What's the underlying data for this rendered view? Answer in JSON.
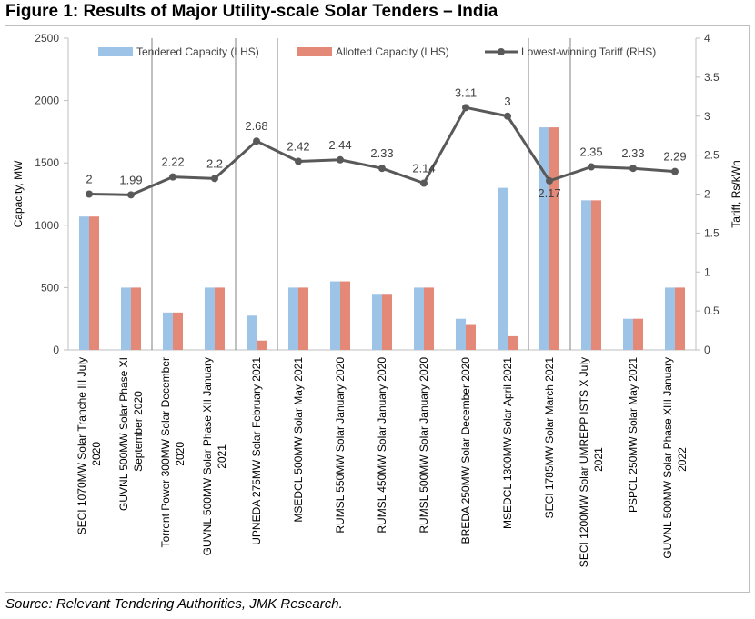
{
  "figure_title": "Figure 1: Results of Major Utility-scale Solar Tenders – India",
  "source": "Source: Relevant Tendering Authorities, JMK Research.",
  "colors": {
    "tendered": "#9dc3e6",
    "allotted": "#e48878",
    "tariff_line": "#595959",
    "separator": "#808080"
  },
  "chart_data": {
    "type": "bar",
    "categories": [
      [
        "SECI 1070MW Solar Tranche III July",
        "2020"
      ],
      [
        "GUVNL 500MW Solar Phase XI",
        "September 2020"
      ],
      [
        "Torrent Power 300MW Solar December",
        "2020"
      ],
      [
        "GUVNL 500MW Solar Phase XII January",
        "2021"
      ],
      [
        "UPNEDA 275MW Solar February 2021"
      ],
      [
        "MSEDCL 500MW Solar May 2021"
      ],
      [
        "RUMSL 550MW Solar January 2020"
      ],
      [
        "RUMSL 450MW Solar January 2020"
      ],
      [
        "RUMSL 500MW Solar January 2020"
      ],
      [
        "BREDA 250MW Solar December 2020"
      ],
      [
        "MSEDCL 1300MW Solar April 2021"
      ],
      [
        "SECI 1785MW Solar March 2021"
      ],
      [
        "SECI 1200MW Solar UMREPP ISTS X July",
        "2021"
      ],
      [
        "PSPCL 250MW Solar May 2021"
      ],
      [
        "GUVNL 500MW Solar Phase XIII January",
        "2022"
      ]
    ],
    "series": [
      {
        "name": "Tendered Capacity (LHS)",
        "axis": "left",
        "kind": "bar",
        "values": [
          1070,
          500,
          300,
          500,
          275,
          500,
          550,
          450,
          500,
          250,
          1300,
          1785,
          1200,
          250,
          500
        ]
      },
      {
        "name": "Allotted Capacity (LHS)",
        "axis": "left",
        "kind": "bar",
        "values": [
          1070,
          500,
          300,
          500,
          75,
          500,
          550,
          450,
          500,
          200,
          110,
          1785,
          1200,
          250,
          500
        ]
      },
      {
        "name": "Lowest-winning Tariff (RHS)",
        "axis": "right",
        "kind": "line",
        "values": [
          2,
          1.99,
          2.22,
          2.2,
          2.68,
          2.42,
          2.44,
          2.33,
          2.14,
          3.11,
          3,
          2.17,
          2.35,
          2.33,
          2.29
        ],
        "labels": [
          "2",
          "1.99",
          "2.22",
          "2.2",
          "2.68",
          "2.42",
          "2.44",
          "2.33",
          "2.14",
          "3.11",
          "3",
          "2.17",
          "2.35",
          "2.33",
          "2.29"
        ]
      }
    ],
    "ylabel": "Capacity, MW",
    "y2label": "Tariff, Rs/kWh",
    "ylim": [
      0,
      2500
    ],
    "y_ticks": [
      "0",
      "500",
      "1000",
      "1500",
      "2000",
      "2500"
    ],
    "y_tick_values": [
      0,
      500,
      1000,
      1500,
      2000,
      2500
    ],
    "y2lim": [
      0,
      4
    ],
    "y2_ticks": [
      "0",
      "0.5",
      "1",
      "1.5",
      "2",
      "2.5",
      "3",
      "3.5",
      "4"
    ],
    "y2_tick_values": [
      0,
      0.5,
      1,
      1.5,
      2,
      2.5,
      3,
      3.5,
      4
    ],
    "group_separators_after": [
      1,
      3,
      4,
      10,
      11
    ],
    "grid": false,
    "legend_position": "top"
  }
}
